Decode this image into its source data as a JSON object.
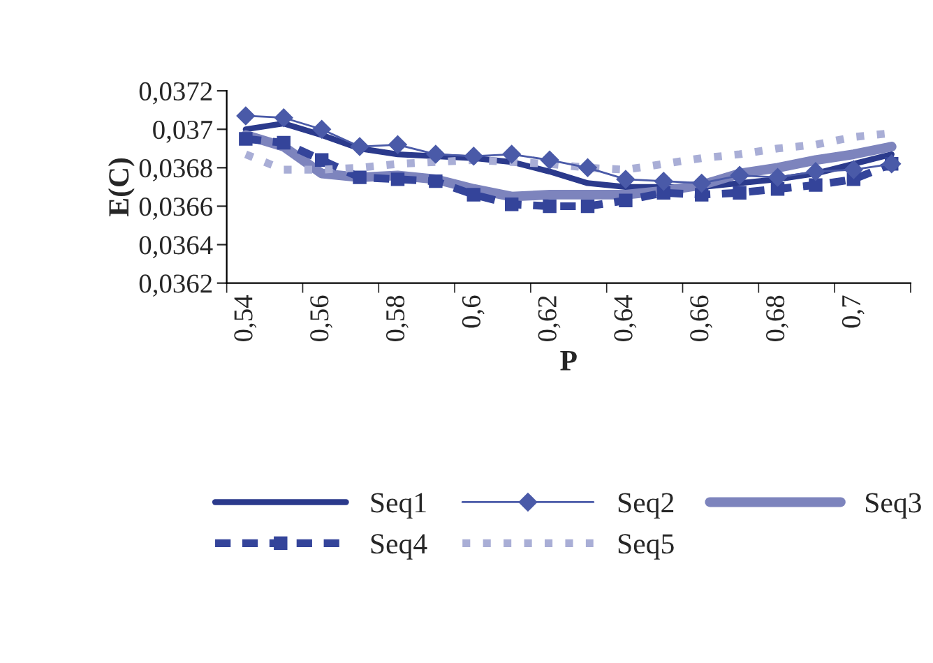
{
  "chart_data": {
    "type": "line",
    "xlabel": "P",
    "ylabel": "E(C)",
    "categories": [
      "0,54",
      null,
      "0,56",
      null,
      "0,58",
      null,
      "0,6",
      null,
      "0,62",
      null,
      "0,64",
      null,
      "0,66",
      null,
      "0,68",
      null,
      "0,7",
      null
    ],
    "ylim": [
      0.0362,
      0.0372
    ],
    "yticks": [
      {
        "value": 0.0362,
        "label": "0,0362"
      },
      {
        "value": 0.0364,
        "label": "0,0364"
      },
      {
        "value": 0.0366,
        "label": "0,0366"
      },
      {
        "value": 0.0368,
        "label": "0,0368"
      },
      {
        "value": 0.037,
        "label": "0,037"
      },
      {
        "value": 0.0372,
        "label": "0,0372"
      }
    ],
    "grid": false,
    "legend": "bottom",
    "series": [
      {
        "name": "Seq1",
        "color": "#2b3a8c",
        "line_style": "solid",
        "marker": "none",
        "values": [
          0.037,
          0.03703,
          0.03697,
          0.0369,
          0.03687,
          0.03686,
          0.03685,
          0.03683,
          0.03678,
          0.03672,
          0.0367,
          0.0367,
          0.0367,
          0.03672,
          0.03674,
          0.03677,
          0.03682,
          0.03687
        ]
      },
      {
        "name": "Seq2",
        "color": "#4a5aa8",
        "line_style": "solid",
        "marker": "diamond",
        "values": [
          0.03707,
          0.03706,
          0.037,
          0.03691,
          0.03692,
          0.03687,
          0.03686,
          0.03687,
          0.03684,
          0.0368,
          0.03674,
          0.03673,
          0.03672,
          0.03676,
          0.03675,
          0.03678,
          0.03679,
          0.03682
        ]
      },
      {
        "name": "Seq3",
        "color": "#7d84bd",
        "line_style": "solid",
        "marker": "none",
        "values": [
          0.03697,
          0.03691,
          0.03677,
          0.03675,
          0.03676,
          0.03674,
          0.03669,
          0.03665,
          0.03666,
          0.03666,
          0.03666,
          0.03668,
          0.03671,
          0.03677,
          0.0368,
          0.03684,
          0.03687,
          0.03691
        ]
      },
      {
        "name": "Seq4",
        "color": "#34449a",
        "line_style": "dashed",
        "marker": "square",
        "values": [
          0.03695,
          0.03693,
          0.03684,
          0.03675,
          0.03674,
          0.03673,
          0.03666,
          0.03661,
          0.0366,
          0.0366,
          0.03663,
          0.03667,
          0.03666,
          0.03667,
          0.03669,
          0.03671,
          0.03674,
          0.03682
        ]
      },
      {
        "name": "Seq5",
        "color": "#a9aed6",
        "line_style": "dotted",
        "marker": "none",
        "values": [
          0.03687,
          0.03679,
          0.03679,
          0.0368,
          0.03682,
          0.03683,
          0.03684,
          0.03683,
          0.03682,
          0.0368,
          0.03679,
          0.03682,
          0.03685,
          0.03687,
          0.0369,
          0.03692,
          0.03696,
          0.03698
        ]
      }
    ]
  }
}
